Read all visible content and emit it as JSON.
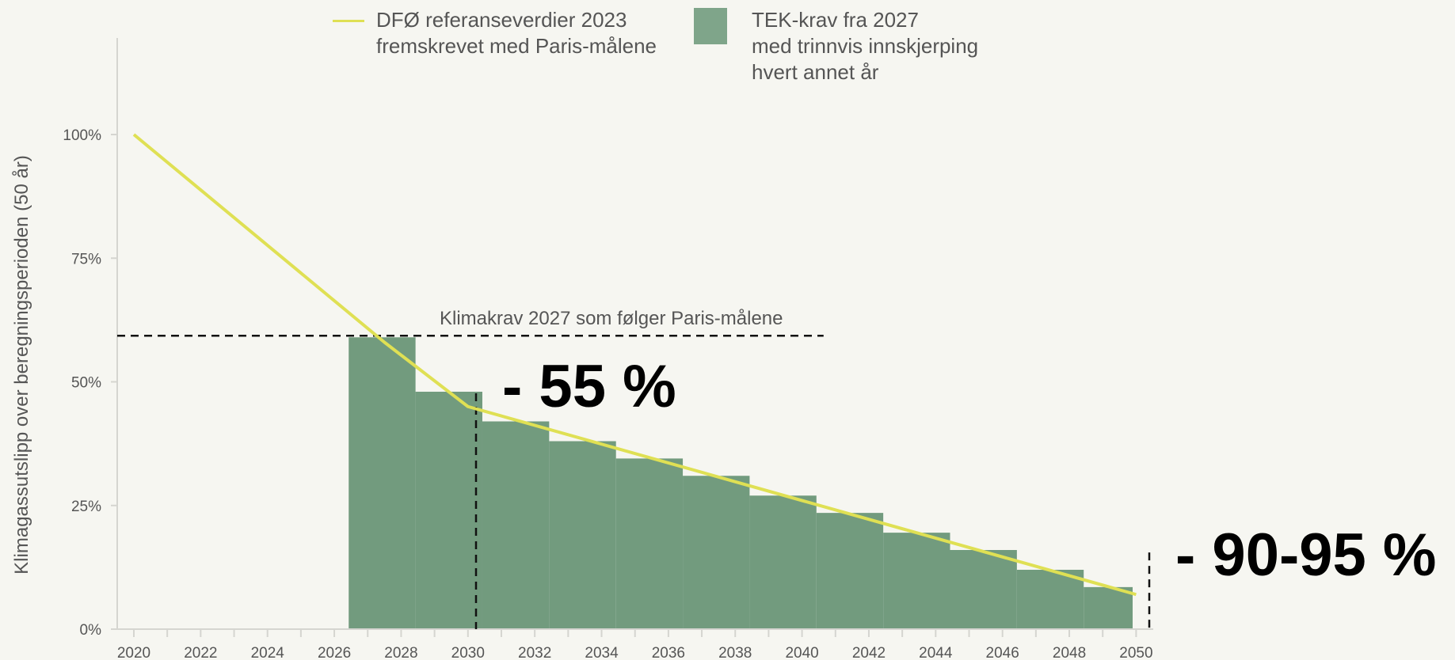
{
  "chart_data": {
    "type": "bar",
    "ylabel": "Klimagassutslipp over  beregningsperioden (50 år)",
    "xlabel": "",
    "ylim": [
      0,
      1.0
    ],
    "yticks": [
      "0%",
      "25%",
      "50%",
      "75%",
      "100%"
    ],
    "xticks": [
      "2020",
      "2022",
      "2024",
      "2026",
      "2028",
      "2030",
      "2032",
      "2034",
      "2036",
      "2038",
      "2040",
      "2042",
      "2044",
      "2046",
      "2048",
      "2050"
    ],
    "xlim": [
      2019.5,
      2050.5
    ],
    "grid": false,
    "series": [
      {
        "name": "DFØ referanseverdier 2023 fremskrevet med Paris-målene",
        "type": "line",
        "color": "#dfe054",
        "x": [
          2020,
          2027.5,
          2030,
          2050
        ],
        "values": [
          1.0,
          0.58,
          0.45,
          0.07
        ]
      },
      {
        "name": "TEK-krav fra 2027 med trinnvis innskjerping hvert annet år",
        "type": "step-area",
        "color": "#729b7e",
        "steps": [
          {
            "x0": 2027,
            "x1": 2029,
            "value": 0.59
          },
          {
            "x0": 2029,
            "x1": 2031,
            "value": 0.48
          },
          {
            "x0": 2031,
            "x1": 2033,
            "value": 0.42
          },
          {
            "x0": 2033,
            "x1": 2035,
            "value": 0.38
          },
          {
            "x0": 2035,
            "x1": 2037,
            "value": 0.345
          },
          {
            "x0": 2037,
            "x1": 2039,
            "value": 0.31
          },
          {
            "x0": 2039,
            "x1": 2041,
            "value": 0.27
          },
          {
            "x0": 2041,
            "x1": 2043,
            "value": 0.235
          },
          {
            "x0": 2043,
            "x1": 2045,
            "value": 0.195
          },
          {
            "x0": 2045,
            "x1": 2047,
            "value": 0.16
          },
          {
            "x0": 2047,
            "x1": 2049,
            "value": 0.12
          },
          {
            "x0": 2049,
            "x1": 2051,
            "value": 0.085
          }
        ]
      }
    ],
    "reference_lines": [
      {
        "orientation": "horizontal",
        "value": 0.59,
        "x_from": 2020,
        "x_to": 2041,
        "label": "Klimakrav 2027 som følger Paris-målene"
      },
      {
        "orientation": "vertical",
        "x": 2030.25,
        "y_from": 0,
        "y_to": 0.48
      },
      {
        "orientation": "vertical",
        "x": 2050.45,
        "y_from": 0,
        "y_to": 0.155
      }
    ],
    "annotations": [
      "- 55 %",
      "- 90-95 %"
    ]
  },
  "legend": {
    "line_label_1": "DFØ referanseverdier 2023",
    "line_label_2": "fremskrevet med Paris-målene",
    "area_label_1": "TEK-krav fra 2027",
    "area_label_2": "med trinnvis innskjerping",
    "area_label_3": "hvert annet år"
  },
  "annotation_55": "- 55 %",
  "annotation_90": "- 90-95 %",
  "ref_label": "Klimakrav 2027 som følger Paris-målene"
}
